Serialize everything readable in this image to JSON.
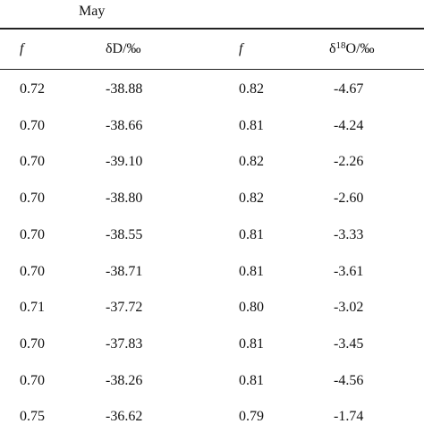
{
  "caption": "May",
  "table": {
    "headers": [
      "f",
      "δD/‰",
      "f",
      [
        "δ",
        "18",
        "O/‰"
      ]
    ],
    "rows": [
      [
        "0.72",
        "-38.88",
        "0.82",
        "-4.67"
      ],
      [
        "0.70",
        "-38.66",
        "0.81",
        "-4.24"
      ],
      [
        "0.70",
        "-39.10",
        "0.82",
        "-2.26"
      ],
      [
        "0.70",
        "-38.80",
        "0.82",
        "-2.60"
      ],
      [
        "0.70",
        "-38.55",
        "0.81",
        "-3.33"
      ],
      [
        "0.70",
        "-38.71",
        "0.81",
        "-3.61"
      ],
      [
        "0.71",
        "-37.72",
        "0.80",
        "-3.02"
      ],
      [
        "0.70",
        "-37.83",
        "0.81",
        "-3.45"
      ],
      [
        "0.70",
        "-38.26",
        "0.81",
        "-4.56"
      ],
      [
        "0.75",
        "-36.62",
        "0.79",
        "-1.74"
      ]
    ]
  }
}
